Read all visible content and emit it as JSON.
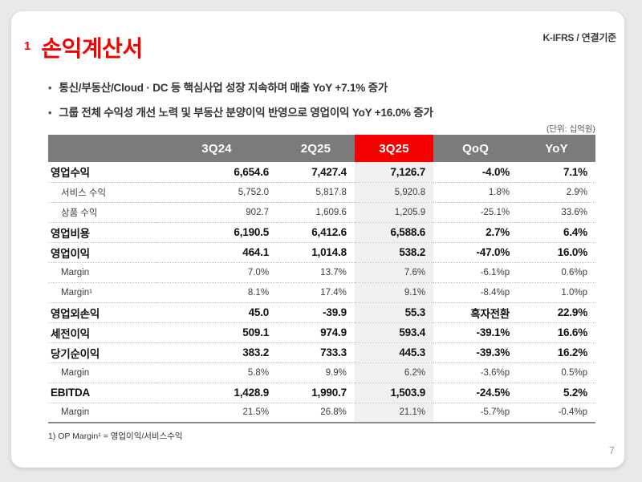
{
  "page": {
    "standard_label": "K-IFRS / 연결기준",
    "title_number": "1",
    "title": "손익계산서",
    "bullet_glyph": "•",
    "bullets": [
      "통신/부동산/Cloud · DC 등 핵심사업 성장 지속하며 매출 YoY +7.1% 증가",
      "그룹 전체 수익성 개선 노력 및 부동산 분양이익 반영으로 영업이익 YoY +16.0% 증가"
    ],
    "unit_label": "(단위: 십억원)",
    "footnote": "1) OP Margin¹ = 영업이익/서비스수익",
    "page_number": "7"
  },
  "colors": {
    "accent_red": "#f40000",
    "header_gray": "#7b7b7b",
    "highlight_column_gray": "#f0f0f0",
    "page_background": "#e9e9e9"
  },
  "table": {
    "columns": [
      "",
      "3Q24",
      "2Q25",
      "3Q25",
      "QoQ",
      "YoY"
    ],
    "highlighted_column": "3Q25",
    "column_widths_pct": [
      19.8,
      22.0,
      14.2,
      14.4,
      15.4,
      14.2
    ],
    "rows": [
      {
        "label": "영업수익",
        "style": "bold",
        "values": [
          "6,654.6",
          "7,427.4",
          "7,126.7",
          "-4.0%",
          "7.1%"
        ]
      },
      {
        "label": "서비스 수익",
        "style": "sub",
        "values": [
          "5,752.0",
          "5,817.8",
          "5,920.8",
          "1.8%",
          "2.9%"
        ]
      },
      {
        "label": "상품 수익",
        "style": "sub",
        "values": [
          "902.7",
          "1,609.6",
          "1,205.9",
          "-25.1%",
          "33.6%"
        ]
      },
      {
        "label": "영업비용",
        "style": "bold",
        "values": [
          "6,190.5",
          "6,412.6",
          "6,588.6",
          "2.7%",
          "6.4%"
        ]
      },
      {
        "label": "영업이익",
        "style": "bold",
        "values": [
          "464.1",
          "1,014.8",
          "538.2",
          "-47.0%",
          "16.0%"
        ]
      },
      {
        "label": "Margin",
        "style": "sub",
        "values": [
          "7.0%",
          "13.7%",
          "7.6%",
          "-6.1%p",
          "0.6%p"
        ]
      },
      {
        "label": "Margin¹",
        "style": "sub",
        "values": [
          "8.1%",
          "17.4%",
          "9.1%",
          "-8.4%p",
          "1.0%p"
        ]
      },
      {
        "label": "영업외손익",
        "style": "bold",
        "values": [
          "45.0",
          "-39.9",
          "55.3",
          "흑자전환",
          "22.9%"
        ]
      },
      {
        "label": "세전이익",
        "style": "bold",
        "values": [
          "509.1",
          "974.9",
          "593.4",
          "-39.1%",
          "16.6%"
        ]
      },
      {
        "label": "당기순이익",
        "style": "bold",
        "values": [
          "383.2",
          "733.3",
          "445.3",
          "-39.3%",
          "16.2%"
        ]
      },
      {
        "label": "Margin",
        "style": "sub",
        "values": [
          "5.8%",
          "9.9%",
          "6.2%",
          "-3.6%p",
          "0.5%p"
        ]
      },
      {
        "label": "EBITDA",
        "style": "bold",
        "values": [
          "1,428.9",
          "1,990.7",
          "1,503.9",
          "-24.5%",
          "5.2%"
        ]
      },
      {
        "label": "Margin",
        "style": "sub",
        "values": [
          "21.5%",
          "26.8%",
          "21.1%",
          "-5.7%p",
          "-0.4%p"
        ]
      }
    ]
  }
}
